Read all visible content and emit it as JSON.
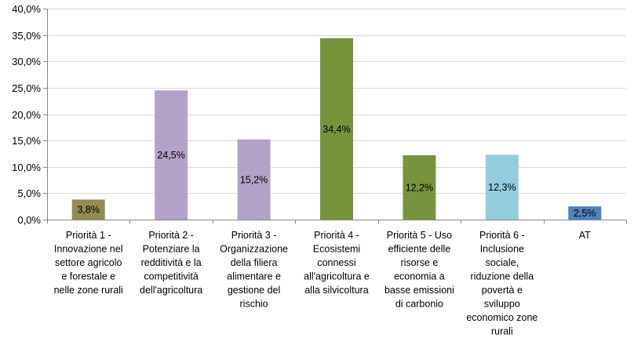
{
  "chart_data": {
    "type": "bar",
    "title": "",
    "xlabel": "",
    "ylabel": "",
    "ylim": [
      0,
      40
    ],
    "yticks": [
      "0,0%",
      "5,0%",
      "10,0%",
      "15,0%",
      "20,0%",
      "25,0%",
      "30,0%",
      "35,0%",
      "40,0%"
    ],
    "grid": true,
    "legend": "none",
    "categories": [
      [
        "Priorità 1 -",
        "Innovazione nel",
        "settore agricolo",
        "e forestale e",
        "nelle zone rurali"
      ],
      [
        "Priorità 2 -",
        "Potenziare la",
        "redditività e la",
        "competitività",
        "dell'agricoltura"
      ],
      [
        "Priorità 3 -",
        "Organizzazione",
        "della filiera",
        "alimentare e",
        "gestione del",
        "rischio"
      ],
      [
        "Priorità 4 -",
        "Ecosistemi",
        "connessi",
        "all'agricoltura e",
        "alla silvicoltura"
      ],
      [
        "Priorità 5 - Uso",
        "efficiente delle",
        "risorse e",
        "economia a",
        "basse emissioni",
        "di carbonio"
      ],
      [
        "Priorità 6 -",
        "Inclusione",
        "sociale,",
        "riduzione della",
        "povertà e",
        "sviluppo",
        "economico zone",
        "rurali"
      ],
      [
        "AT"
      ]
    ],
    "values": [
      3.8,
      24.5,
      15.2,
      34.4,
      12.2,
      12.3,
      2.5
    ],
    "data_labels": [
      "3,8%",
      "24,5%",
      "15,2%",
      "34,4%",
      "12,2%",
      "12,3%",
      "2,5%"
    ],
    "colors": [
      "#948a54",
      "#b3a2c7",
      "#b3a2c7",
      "#77933c",
      "#77933c",
      "#93cddd",
      "#4f81bd"
    ]
  }
}
